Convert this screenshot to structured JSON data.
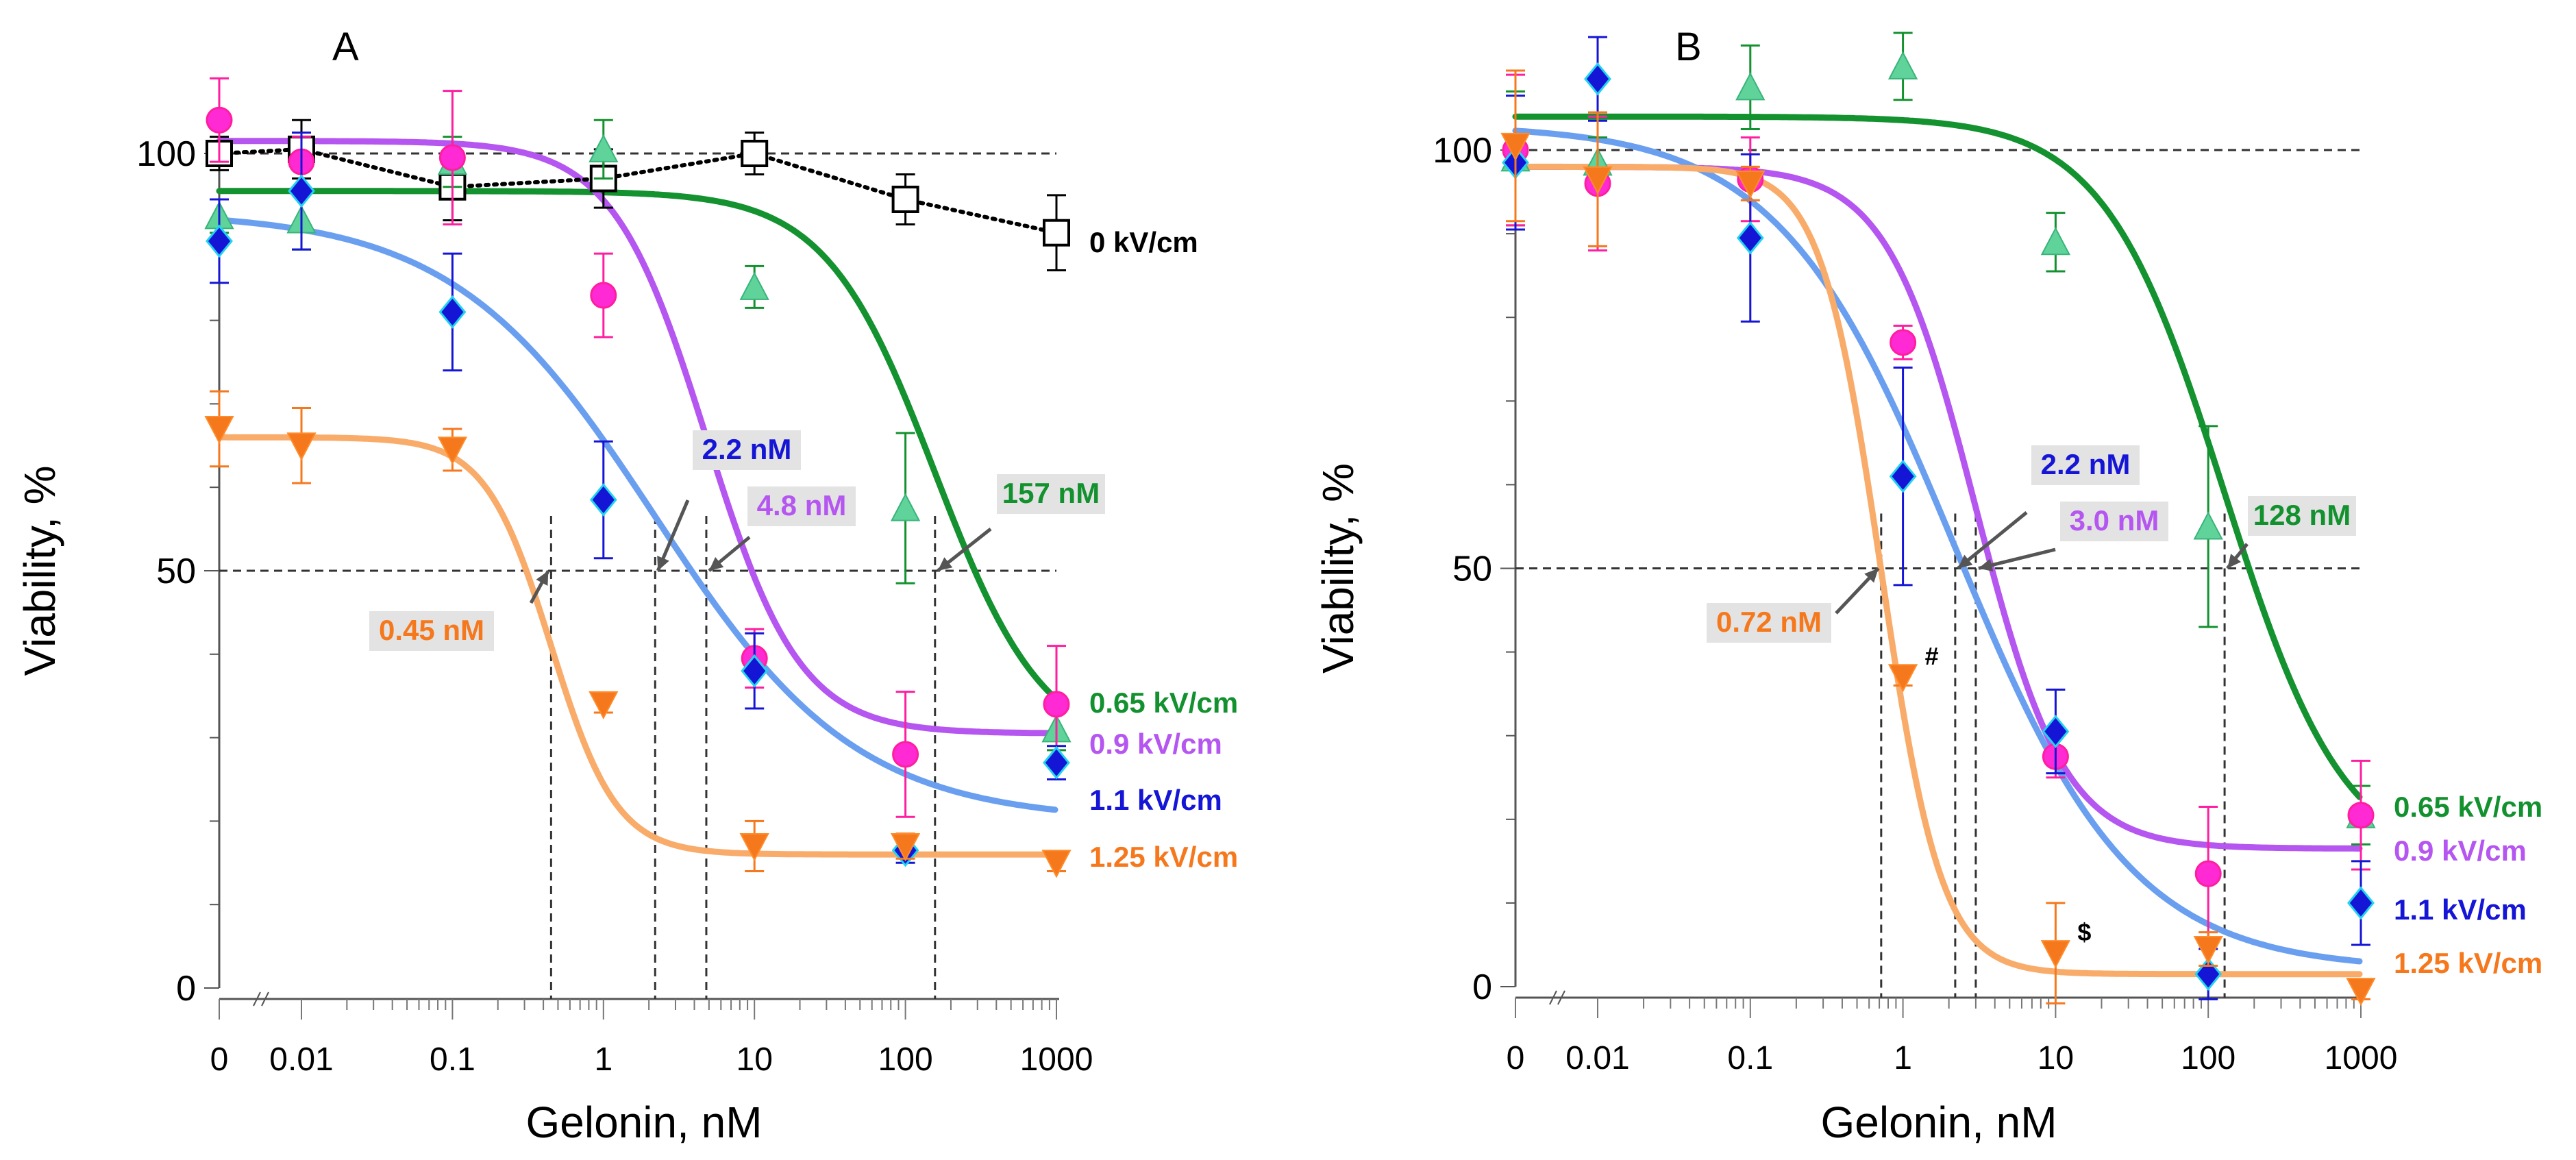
{
  "chart_data": [
    {
      "type": "line",
      "panel_label": "A",
      "xlabel": "Gelonin, nM",
      "ylabel": "Viability, %",
      "x_ticks": [
        "0",
        "0.01",
        "0.1",
        "1",
        "10",
        "100",
        "1000"
      ],
      "x_tick_values": [
        0,
        0.01,
        0.1,
        1,
        10,
        100,
        1000
      ],
      "y_ticks": [
        "0",
        "50",
        "100"
      ],
      "y_tick_values": [
        0,
        50,
        100
      ],
      "ylim": [
        0,
        107
      ],
      "reference_lines": [
        50,
        100
      ],
      "colors": {
        "0.65": "#13912f",
        "0.9": "#b556f0",
        "1.1": "#1515d6",
        "1.25": "#f5781d",
        "ctrl": "#000000"
      },
      "series": [
        {
          "key": "ctrl",
          "name": "0 kV/cm",
          "marker": "square",
          "x": [
            0,
            0.01,
            0.1,
            1,
            10,
            100,
            1000
          ],
          "y": [
            100,
            100.5,
            96,
            97,
            100,
            94.5,
            90.5
          ],
          "err": [
            2,
            3.5,
            4,
            3.5,
            2.5,
            3,
            4.5
          ]
        },
        {
          "key": "0.65",
          "name": "0.65 kV/cm",
          "marker": "triangle-up",
          "x": [
            0,
            0.01,
            0.1,
            1,
            10,
            100,
            1000
          ],
          "y": [
            92.5,
            92,
            99,
            100.5,
            84,
            57.5,
            31
          ],
          "err": [
            2,
            3.5,
            3,
            3.5,
            2.5,
            9,
            2.5
          ],
          "fit": {
            "top": 95.5,
            "bottom": 28,
            "ec50": 157,
            "hill": 1.2
          }
        },
        {
          "key": "0.9",
          "name": "0.9 kV/cm",
          "marker": "circle",
          "x": [
            0,
            0.01,
            0.1,
            1,
            10,
            100,
            1000
          ],
          "y": [
            104,
            99,
            99.5,
            83,
            39.5,
            28,
            34
          ],
          "err": [
            5,
            3,
            8,
            5,
            3.5,
            7.5,
            7
          ],
          "fit": {
            "top": 101.5,
            "bottom": 30.5,
            "ec50": 4.8,
            "hill": 1.4
          }
        },
        {
          "key": "1.1",
          "name": "1.1 kV/cm",
          "marker": "diamond",
          "x": [
            0,
            0.01,
            0.1,
            1,
            10,
            100,
            1000
          ],
          "y": [
            89.5,
            95.5,
            81,
            58.5,
            38,
            16.5,
            27
          ],
          "err": [
            5,
            7,
            7,
            7,
            4.5,
            1.5,
            2
          ],
          "fit": {
            "top": 93,
            "bottom": 20,
            "ec50": 2.2,
            "hill": 0.65
          }
        },
        {
          "key": "1.25",
          "name": "1.25 kV/cm",
          "marker": "triangle-down",
          "x": [
            0,
            0.01,
            0.1,
            1,
            10,
            100,
            1000
          ],
          "y": [
            67,
            65,
            64.5,
            34,
            17,
            17,
            15
          ],
          "err": [
            4.5,
            4.5,
            2.5,
            1,
            3,
            1.5,
            1
          ],
          "fit": {
            "top": 66,
            "bottom": 16,
            "ec50": 0.45,
            "hill": 2.0
          }
        }
      ],
      "annotations": [
        {
          "key": "1.25",
          "text": "0.45 nM",
          "x": 0.45
        },
        {
          "key": "1.1",
          "text": "2.2 nM",
          "x": 2.2
        },
        {
          "key": "0.9",
          "text": "4.8 nM",
          "x": 4.8
        },
        {
          "key": "0.65",
          "text": "157 nM",
          "x": 157
        }
      ],
      "symbols": []
    },
    {
      "type": "line",
      "panel_label": "B",
      "xlabel": "Gelonin, nM",
      "ylabel": "Viability, %",
      "x_ticks": [
        "0",
        "0.01",
        "0.1",
        "1",
        "10",
        "100",
        "1000"
      ],
      "x_tick_values": [
        0,
        0.01,
        0.1,
        1,
        10,
        100,
        1000
      ],
      "y_ticks": [
        "0",
        "50",
        "100"
      ],
      "y_tick_values": [
        0,
        50,
        100
      ],
      "ylim": [
        0,
        107
      ],
      "reference_lines": [
        50,
        100
      ],
      "colors": {
        "0.65": "#13912f",
        "0.9": "#b556f0",
        "1.1": "#1515d6",
        "1.25": "#f5781d"
      },
      "series": [
        {
          "key": "0.65",
          "name": "0.65 kV/cm",
          "marker": "triangle-up",
          "x": [
            0,
            0.01,
            0.1,
            1,
            10,
            100,
            1000
          ],
          "y": [
            99,
            98.5,
            107.5,
            110,
            89,
            55,
            20.5
          ],
          "err": [
            8,
            3,
            5,
            4,
            3.5,
            12,
            3.5
          ],
          "fit": {
            "top": 104,
            "bottom": 14,
            "ec50": 128,
            "hill": 1.1
          }
        },
        {
          "key": "0.9",
          "name": "0.9 kV/cm",
          "marker": "circle",
          "x": [
            0,
            0.01,
            0.1,
            1,
            10,
            100,
            1000
          ],
          "y": [
            100,
            96,
            96.5,
            77,
            27.5,
            13.5,
            20.5
          ],
          "err": [
            9,
            8,
            5,
            2,
            2.5,
            8,
            6.5
          ],
          "fit": {
            "top": 98,
            "bottom": 16.5,
            "ec50": 3.0,
            "hill": 1.5
          }
        },
        {
          "key": "1.1",
          "name": "1.1 kV/cm",
          "marker": "diamond",
          "x": [
            0,
            0.01,
            0.1,
            1,
            10,
            100,
            1000
          ],
          "y": [
            98.5,
            108.5,
            89.5,
            61,
            30.5,
            1.5,
            10
          ],
          "err": [
            8,
            5,
            10,
            13,
            5,
            3,
            5
          ],
          "fit": {
            "top": 103,
            "bottom": 2,
            "ec50": 2.2,
            "hill": 0.75
          }
        },
        {
          "key": "1.25",
          "name": "1.25 kV/cm",
          "marker": "triangle-down",
          "x": [
            0,
            0.01,
            0.1,
            1,
            10,
            100,
            1000
          ],
          "y": [
            100.5,
            96.5,
            96,
            37,
            4,
            4.5,
            -0.5
          ],
          "err": [
            9,
            8,
            2,
            1,
            6,
            2,
            1
          ],
          "fit": {
            "top": 98,
            "bottom": 1.5,
            "ec50": 0.72,
            "hill": 2.2
          }
        }
      ],
      "annotations": [
        {
          "key": "1.25",
          "text": "0.72 nM",
          "x": 0.72
        },
        {
          "key": "1.1",
          "text": "2.2 nM",
          "x": 2.2
        },
        {
          "key": "0.9",
          "text": "3.0 nM",
          "x": 3.0
        },
        {
          "key": "0.65",
          "text": "128 nM",
          "x": 128
        }
      ],
      "symbols": [
        {
          "text": "#",
          "x": 1,
          "y": 37
        },
        {
          "text": "$",
          "x": 10,
          "y": 4
        }
      ]
    }
  ]
}
